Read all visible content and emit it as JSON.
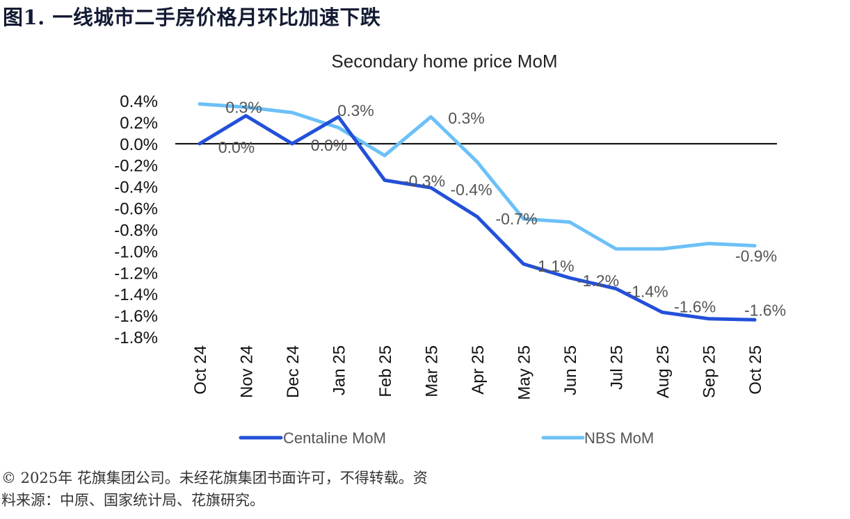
{
  "figure_title": "图1. 一线城市二手房价格月环比加速下跌",
  "footer": {
    "line1": "© 2025年 花旗集团公司。未经花旗集团书面许可，不得转载。资",
    "line2": "料来源：中原、国家统计局、花旗研究。"
  },
  "chart_data": {
    "type": "line",
    "title": "Secondary home price MoM",
    "xlabel": "",
    "ylabel": "",
    "categories": [
      "Oct 24",
      "Nov 24",
      "Dec 24",
      "Jan 25",
      "Feb 25",
      "Mar 25",
      "Apr 25",
      "May 25",
      "Jun 25",
      "Jul 25",
      "Aug 25",
      "Sep 25",
      "Oct 25"
    ],
    "ylim": [
      -1.8,
      0.4
    ],
    "yticks": [
      0.4,
      0.2,
      0.0,
      -0.2,
      -0.4,
      -0.6,
      -0.8,
      -1.0,
      -1.2,
      -1.4,
      -1.6,
      -1.8
    ],
    "ytick_labels": [
      "0.4%",
      "0.2%",
      "0.0%",
      "-0.2%",
      "-0.4%",
      "-0.6%",
      "-0.8%",
      "-1.0%",
      "-1.2%",
      "-1.4%",
      "-1.6%",
      "-1.8%"
    ],
    "unit": "%",
    "grid": false,
    "zero_line": true,
    "legend_position": "bottom",
    "series": [
      {
        "name": "Centaline MoM",
        "color": "#2350d9",
        "values": [
          0.0,
          0.26,
          0.0,
          0.25,
          -0.34,
          -0.41,
          -0.68,
          -1.12,
          -1.25,
          -1.35,
          -1.57,
          -1.63,
          -1.64
        ],
        "data_labels": [
          {
            "index": 0,
            "text": "0.0%"
          },
          {
            "index": 1,
            "text": "0.3%"
          },
          {
            "index": 2,
            "text": "0.0%"
          },
          {
            "index": 3,
            "text": "0.3%"
          },
          {
            "index": 4,
            "text": "-0.3%"
          },
          {
            "index": 5,
            "text": "-0.4%"
          },
          {
            "index": 7,
            "text": "-1.1%"
          },
          {
            "index": 8,
            "text": "-1.2%"
          },
          {
            "index": 9,
            "text": "-1.4%"
          },
          {
            "index": 10,
            "text": "-1.6%"
          },
          {
            "index": 12,
            "text": "-1.6%"
          }
        ]
      },
      {
        "name": "NBS MoM",
        "color": "#6cc0f7",
        "values": [
          0.37,
          0.34,
          0.29,
          0.15,
          -0.11,
          0.25,
          -0.17,
          -0.7,
          -0.73,
          -0.98,
          -0.98,
          -0.93,
          -0.95
        ],
        "data_labels": [
          {
            "index": 5,
            "text": "0.3%"
          },
          {
            "index": 7,
            "text": "-0.7%"
          },
          {
            "index": 12,
            "text": "-0.9%"
          }
        ]
      }
    ]
  }
}
